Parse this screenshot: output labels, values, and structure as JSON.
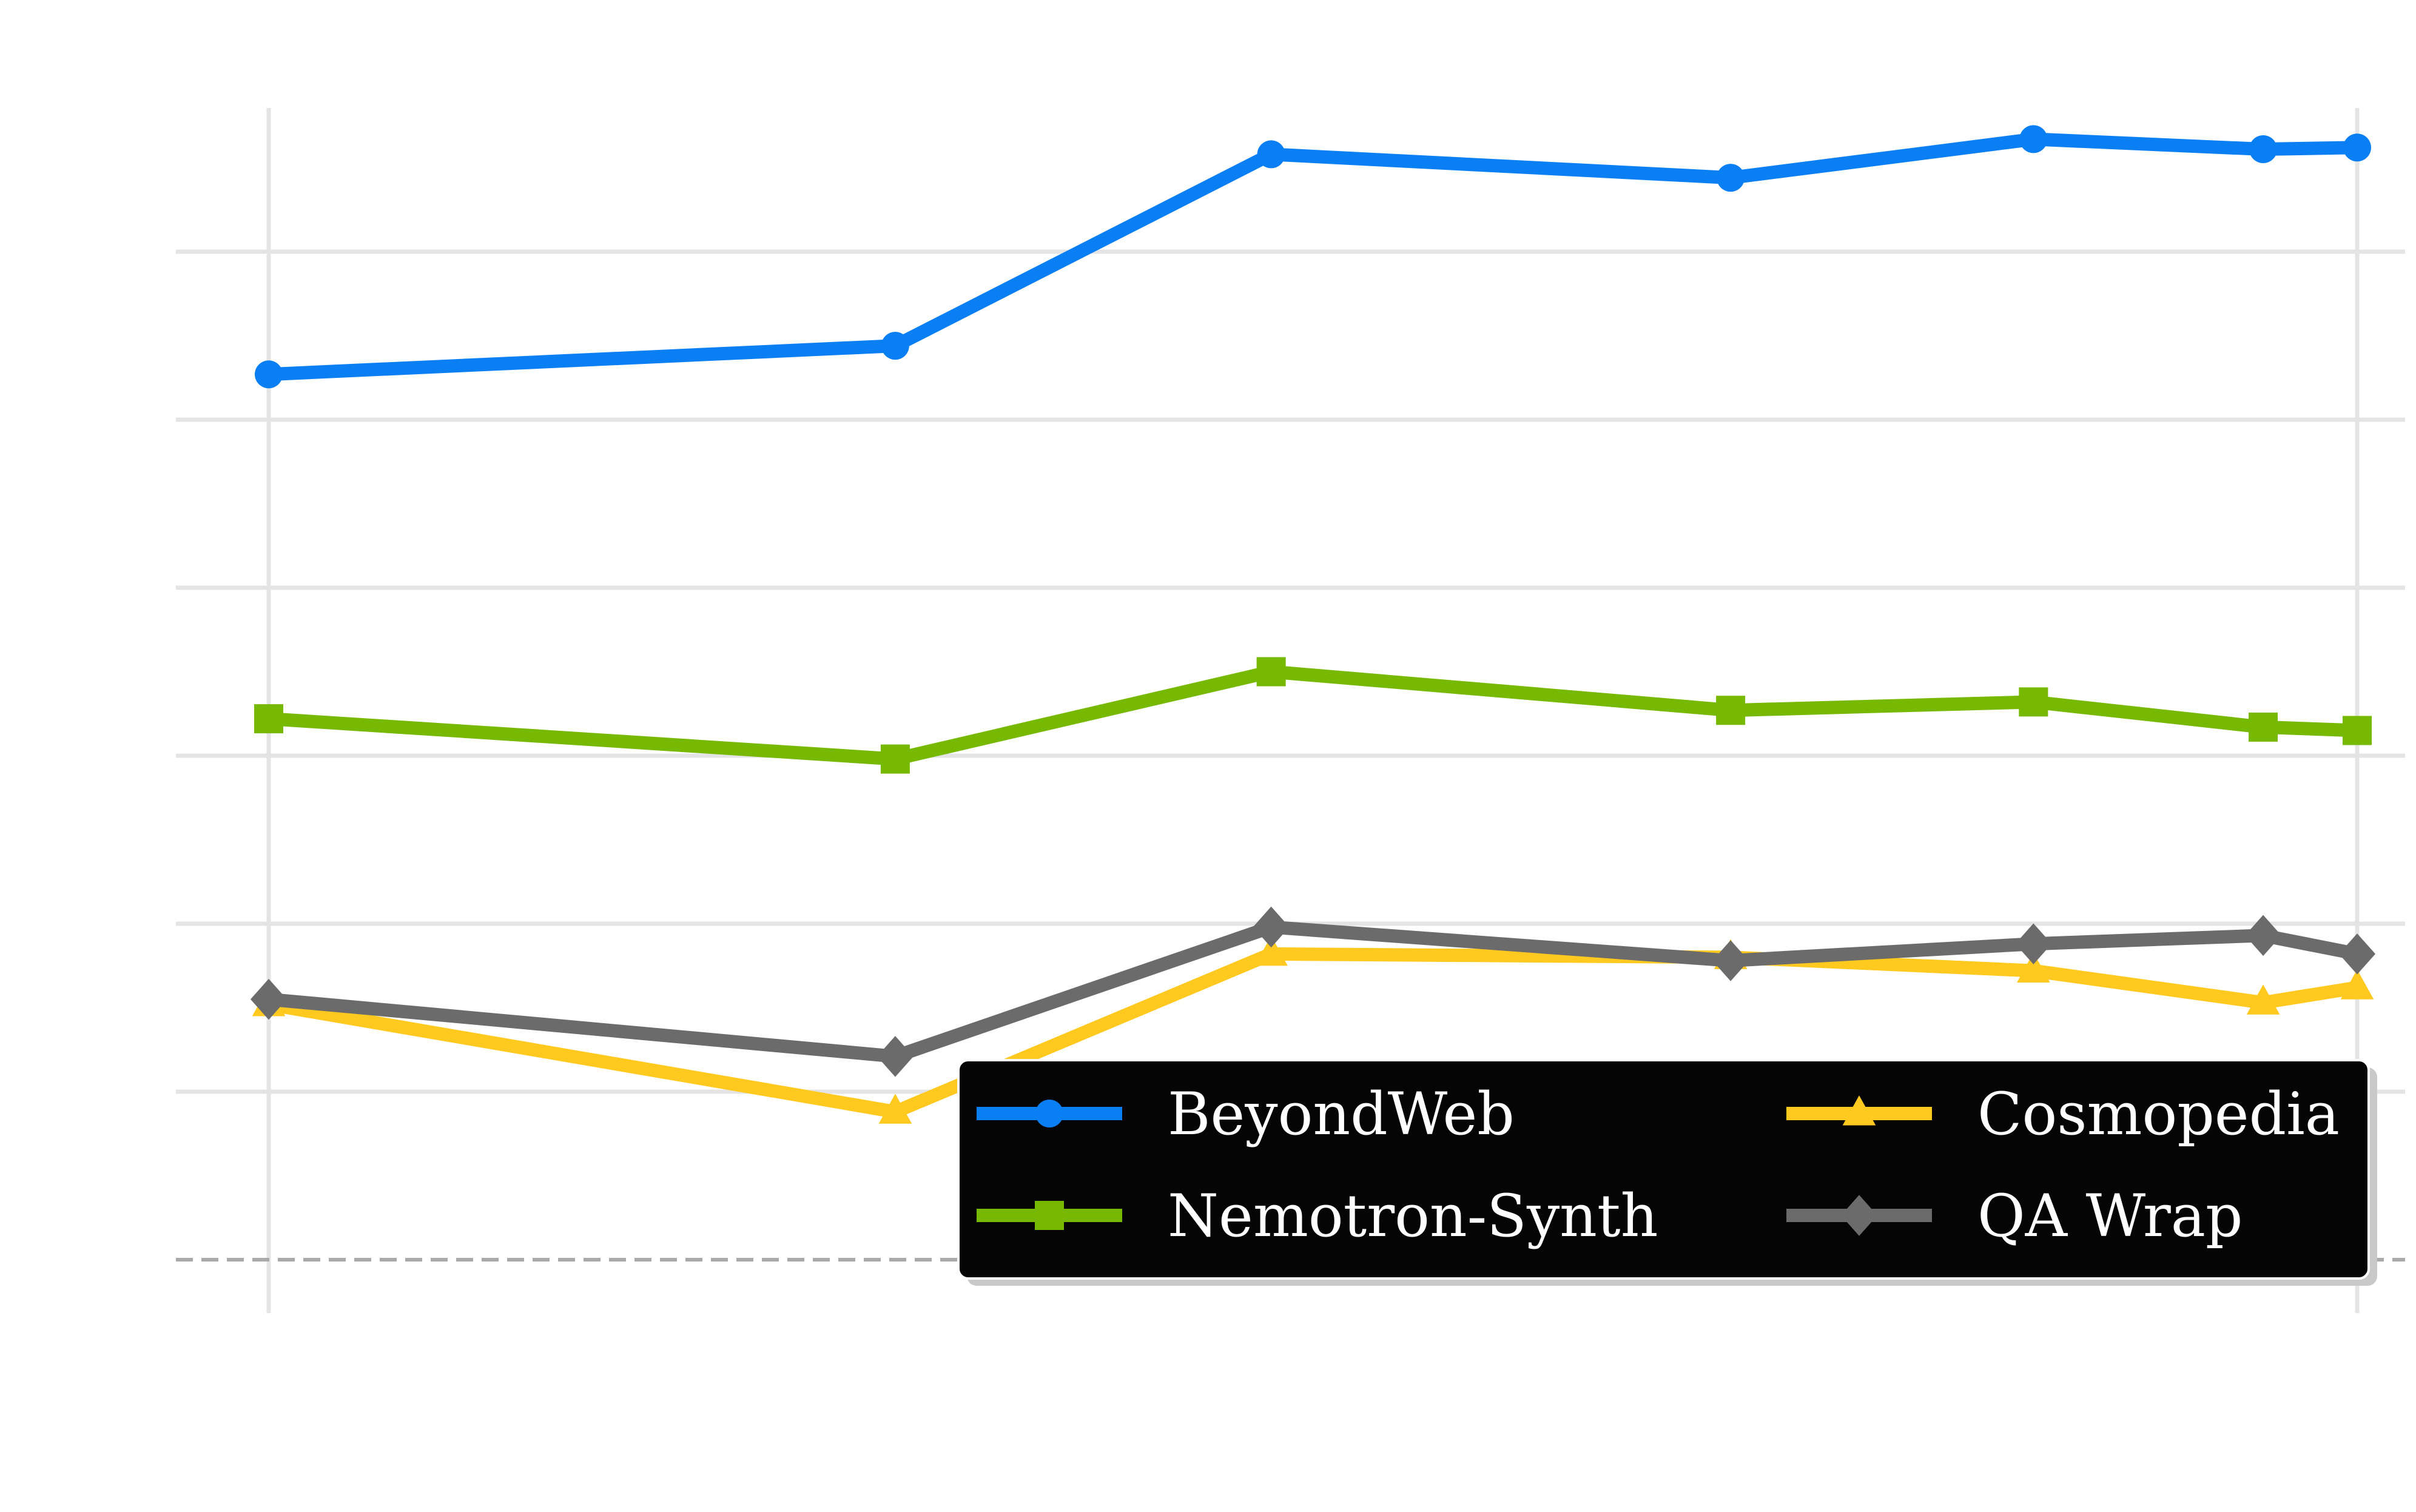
{
  "chart_data": {
    "type": "line",
    "title": "",
    "xlabel": "",
    "ylabel": "",
    "grid": true,
    "legend_placement": "lower-right",
    "x": [
      0,
      3,
      4.8,
      7,
      8.45,
      9.55,
      10
    ],
    "xlim": [
      -0.4,
      10.2
    ],
    "ylim": [
      0,
      6.5
    ],
    "baseline": 0,
    "series": [
      {
        "name": "BeyondWeb",
        "color": "#0a7ff4",
        "marker": "circle",
        "values": [
          5.27,
          5.44,
          6.58,
          6.44,
          6.67,
          6.61,
          6.62
        ]
      },
      {
        "name": "Nemotron-Synth",
        "color": "#76b900",
        "marker": "square",
        "values": [
          3.22,
          2.98,
          3.5,
          3.27,
          3.32,
          3.17,
          3.15
        ]
      },
      {
        "name": "Cosmopedia",
        "color": "#ffc91f",
        "marker": "triangle",
        "values": [
          1.52,
          0.88,
          1.82,
          1.8,
          1.72,
          1.53,
          1.62
        ]
      },
      {
        "name": "QA Wrap",
        "color": "#6b6b6b",
        "marker": "diamond",
        "values": [
          1.55,
          1.21,
          1.98,
          1.78,
          1.88,
          1.93,
          1.82
        ]
      }
    ]
  }
}
